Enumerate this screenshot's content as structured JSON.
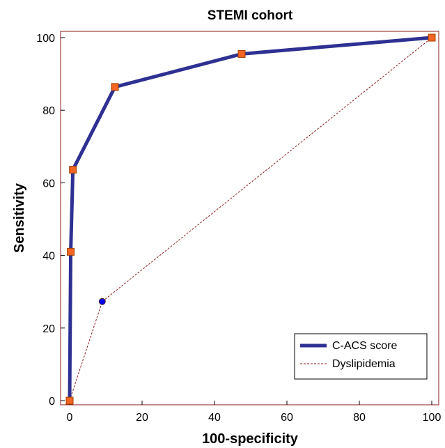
{
  "chart_data": {
    "type": "line",
    "title": "STEMI cohort",
    "xlabel": "100-specificity",
    "ylabel": "Sensitivity",
    "xlim": [
      0,
      100
    ],
    "ylim": [
      0,
      100
    ],
    "xticks": [
      0,
      20,
      40,
      60,
      80,
      100
    ],
    "yticks": [
      0,
      20,
      40,
      60,
      80,
      100
    ],
    "grid": false,
    "legend_position": "bottom-right",
    "series": [
      {
        "name": "C-ACS score",
        "color": "#2e3192",
        "line_style": "solid",
        "marker": "square",
        "marker_color": "#f26522",
        "points": [
          {
            "x": 0,
            "y": 0
          },
          {
            "x": 0.3,
            "y": 41
          },
          {
            "x": 0.9,
            "y": 63.6
          },
          {
            "x": 12.5,
            "y": 86.4
          },
          {
            "x": 47.5,
            "y": 95.5
          },
          {
            "x": 100,
            "y": 100
          }
        ]
      },
      {
        "name": "Dyslipidemia",
        "color": "#8b1a1a",
        "line_style": "dotted",
        "marker": "circle",
        "marker_color": "#0000ee",
        "points": [
          {
            "x": 0,
            "y": 0
          },
          {
            "x": 9,
            "y": 27.3
          },
          {
            "x": 100,
            "y": 100
          }
        ]
      }
    ]
  }
}
